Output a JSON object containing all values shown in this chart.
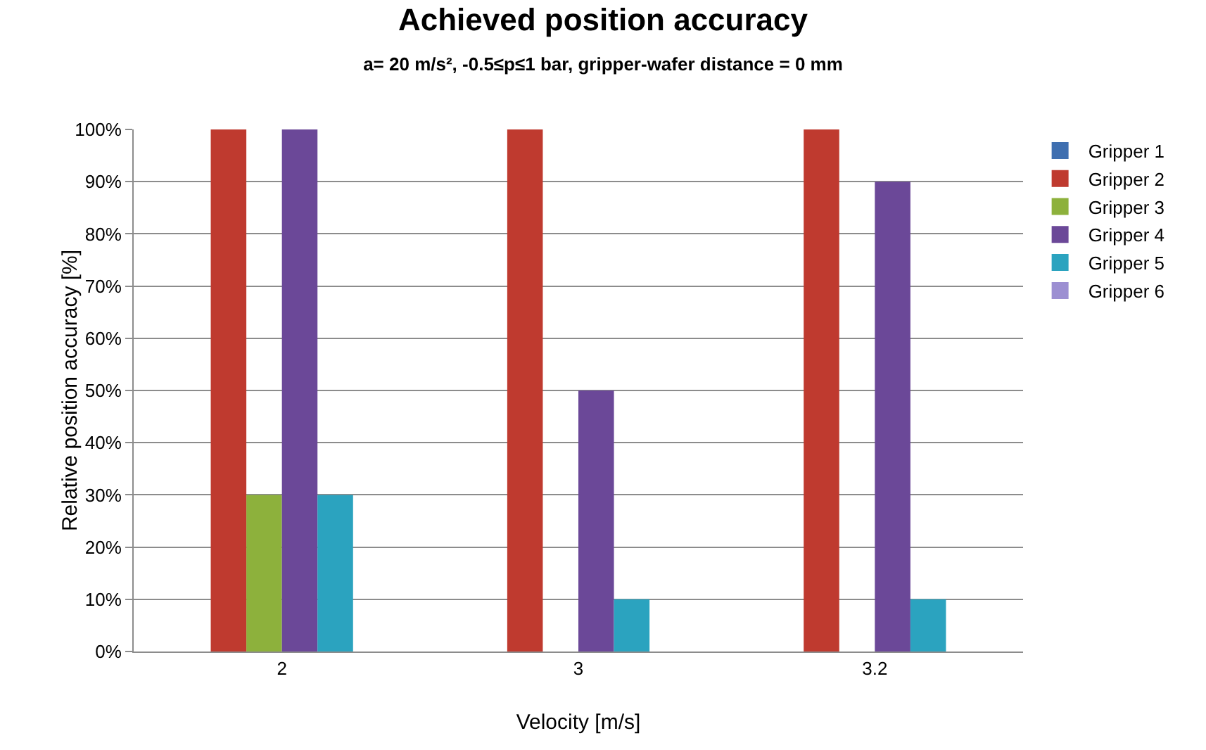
{
  "chart_data": {
    "type": "bar",
    "title": "Achieved position accuracy",
    "subtitle": "a= 20 m/s², -0.5≤p≤1 bar, gripper-wafer distance = 0 mm",
    "xlabel": "Velocity [m/s]",
    "ylabel": "Relative position accuracy [%]",
    "categories": [
      "2",
      "3",
      "3.2"
    ],
    "series": [
      {
        "name": "Gripper 1",
        "color": "#3f6fb0",
        "values": [
          0,
          0,
          0
        ]
      },
      {
        "name": "Gripper 2",
        "color": "#bf3a2f",
        "values": [
          100,
          100,
          100
        ]
      },
      {
        "name": "Gripper 3",
        "color": "#8db13c",
        "values": [
          30,
          0,
          0
        ]
      },
      {
        "name": "Gripper 4",
        "color": "#6b4898",
        "values": [
          100,
          50,
          90
        ]
      },
      {
        "name": "Gripper 5",
        "color": "#2ba3bf",
        "values": [
          30,
          10,
          10
        ]
      },
      {
        "name": "Gripper 6",
        "color": "#9c8fd2",
        "values": [
          0,
          0,
          0
        ]
      }
    ],
    "ylim": [
      0,
      100
    ],
    "yticks": [
      {
        "value": 0,
        "label": "0%"
      },
      {
        "value": 10,
        "label": "10%"
      },
      {
        "value": 20,
        "label": "20%"
      },
      {
        "value": 30,
        "label": "30%"
      },
      {
        "value": 40,
        "label": "40%"
      },
      {
        "value": 50,
        "label": "50%"
      },
      {
        "value": 60,
        "label": "60%"
      },
      {
        "value": 70,
        "label": "70%"
      },
      {
        "value": 80,
        "label": "80%"
      },
      {
        "value": 90,
        "label": "90%"
      },
      {
        "value": 100,
        "label": "100%"
      }
    ],
    "grid": "y",
    "legend": "right"
  }
}
